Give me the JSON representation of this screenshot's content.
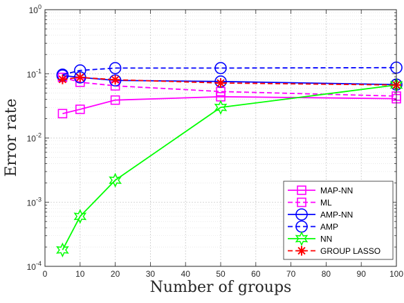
{
  "chart_data": {
    "type": "line",
    "xlabel": "Number of groups",
    "ylabel": "Error rate",
    "xlim": [
      0,
      100
    ],
    "ylim": [
      0.0001,
      1
    ],
    "yscale": "log",
    "grid": true,
    "legend_position": "bottom-right",
    "x_ticks": [
      0,
      10,
      20,
      30,
      40,
      50,
      60,
      70,
      80,
      90,
      100
    ],
    "y_ticks": [
      {
        "value": 0.0001,
        "base": "10",
        "exp": "-4"
      },
      {
        "value": 0.001,
        "base": "10",
        "exp": "-3"
      },
      {
        "value": 0.01,
        "base": "10",
        "exp": "-2"
      },
      {
        "value": 0.1,
        "base": "10",
        "exp": "-1"
      },
      {
        "value": 1,
        "base": "10",
        "exp": "0"
      }
    ],
    "x": [
      5,
      10,
      20,
      50,
      100
    ],
    "series": [
      {
        "name": "MAP-NN",
        "color": "#ff00ff",
        "dash": "solid",
        "marker": "square",
        "values": [
          0.024,
          0.028,
          0.039,
          0.044,
          0.041
        ]
      },
      {
        "name": "ML",
        "color": "#ff00ff",
        "dash": "dashed",
        "marker": "square",
        "values": [
          0.088,
          0.074,
          0.065,
          0.053,
          0.045
        ]
      },
      {
        "name": "AMP-NN",
        "color": "#0000ff",
        "dash": "solid",
        "marker": "circle",
        "values": [
          0.094,
          0.088,
          0.079,
          0.076,
          0.068
        ]
      },
      {
        "name": "AMP",
        "color": "#0000ff",
        "dash": "dashed",
        "marker": "circle",
        "values": [
          0.097,
          0.113,
          0.123,
          0.123,
          0.125
        ]
      },
      {
        "name": "NN",
        "color": "#00ff00",
        "dash": "solid",
        "marker": "hexagram",
        "values": [
          0.00018,
          0.0006,
          0.0022,
          0.03,
          0.067
        ]
      },
      {
        "name": "GROUP LASSO",
        "color": "#ff0000",
        "dash": "dashed",
        "marker": "asterisk",
        "values": [
          0.082,
          0.088,
          0.081,
          0.072,
          0.067
        ]
      }
    ]
  }
}
